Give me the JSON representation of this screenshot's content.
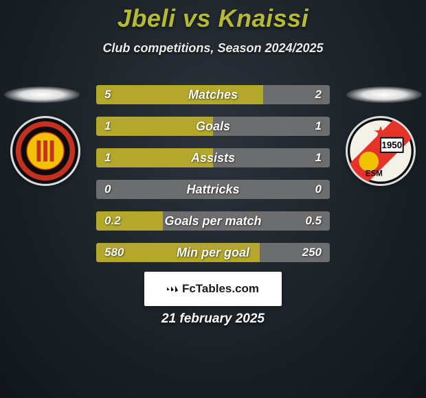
{
  "title_left": "Jbeli",
  "title_mid": " vs ",
  "title_right": "Knaissi",
  "subtitle": "Club competitions, Season 2024/2025",
  "date": "21 february 2025",
  "colors": {
    "accent_left": "#b3a82c",
    "accent_right": "#6c6d6e",
    "neutral": "#6c6d6e",
    "title": "#b6b934"
  },
  "left_team": {
    "name": "Espérance Sportive de Tunis",
    "crest": {
      "outer_trim": "#0b0b0b",
      "outer": "#c53021",
      "inner": "#f2c200",
      "arabic_band": "#0b0b0b",
      "inner_stroke": "#c53021"
    }
  },
  "right_team": {
    "name": "Étoile Sportive de Métlaoui",
    "crest": {
      "bg": "#f4f1e9",
      "ring": "#0b0b0b",
      "stripe": "#e63329",
      "ball": "#f2c200",
      "year": "1950"
    }
  },
  "rows": [
    {
      "label": "Matches",
      "left": "5",
      "right": "2",
      "left_pct": 71.4
    },
    {
      "label": "Goals",
      "left": "1",
      "right": "1",
      "left_pct": 50.0
    },
    {
      "label": "Assists",
      "left": "1",
      "right": "1",
      "left_pct": 50.0
    },
    {
      "label": "Hattricks",
      "left": "0",
      "right": "0",
      "left_pct": 50.0,
      "neutral": true
    },
    {
      "label": "Goals per match",
      "left": "0.2",
      "right": "0.5",
      "left_pct": 28.6
    },
    {
      "label": "Min per goal",
      "left": "580",
      "right": "250",
      "left_pct": 69.9
    }
  ],
  "watermark": "FcTables.com"
}
